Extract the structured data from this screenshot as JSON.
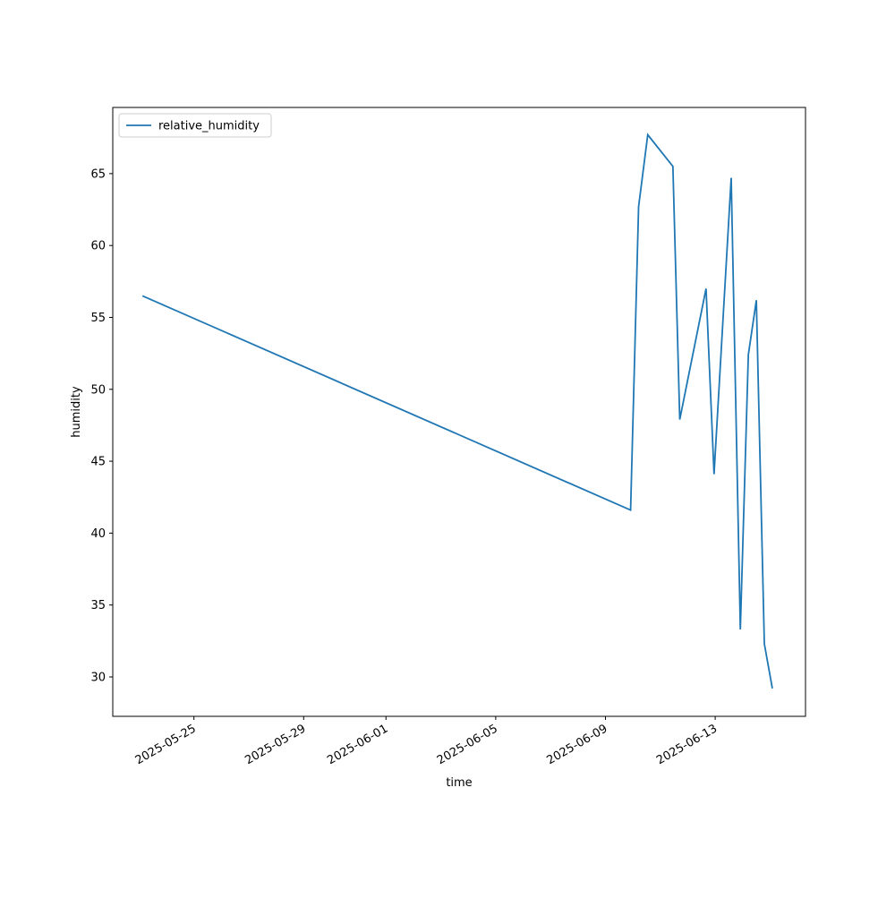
{
  "chart_data": {
    "type": "line",
    "xlabel": "time",
    "ylabel": "humidity",
    "x": [
      "2025-05-23T03:00",
      "2025-06-09T22:00",
      "2025-06-10T05:00",
      "2025-06-10T13:00",
      "2025-06-11T11:00",
      "2025-06-11T17:00",
      "2025-06-12T16:00",
      "2025-06-12T23:00",
      "2025-06-13T14:00",
      "2025-06-13T22:00",
      "2025-06-14T05:00",
      "2025-06-14T12:00",
      "2025-06-14T19:00",
      "2025-06-15T02:00"
    ],
    "series": [
      {
        "name": "relative_humidity",
        "color": "#1f77b4",
        "values": [
          56.5,
          41.6,
          62.7,
          67.7,
          65.5,
          47.9,
          57.0,
          44.1,
          64.7,
          33.3,
          52.4,
          56.2,
          32.3,
          29.2
        ]
      }
    ],
    "xlim": [
      "2025-05-22T01:00",
      "2025-06-16T07:00"
    ],
    "xticks": [
      "2025-05-25",
      "2025-05-29",
      "2025-06-01",
      "2025-06-05",
      "2025-06-09",
      "2025-06-13"
    ],
    "ylim": [
      27.26,
      69.6
    ],
    "yticks": [
      30,
      35,
      40,
      45,
      50,
      55,
      60,
      65
    ],
    "legend": "upper left"
  }
}
